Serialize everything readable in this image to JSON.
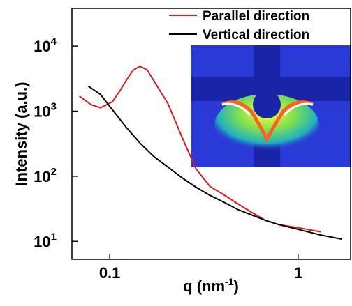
{
  "chart_data": {
    "type": "line",
    "xlabel": {
      "text": "q (nm",
      "superscript": "-1",
      "suffix": ")"
    },
    "ylabel": "Intensity (a.u.)",
    "log_x": true,
    "log_y": true,
    "xlim": [
      0.063,
      1.9
    ],
    "ylim": [
      5.3,
      38000
    ],
    "xticks": [
      0.1,
      1
    ],
    "yticks": [
      {
        "value": 10,
        "label": "10",
        "exponent": "1"
      },
      {
        "value": 100,
        "label": "10",
        "exponent": "2"
      },
      {
        "value": 1000,
        "label": "10",
        "exponent": "3"
      },
      {
        "value": 10000,
        "label": "10",
        "exponent": "4"
      }
    ],
    "legend": "upper right",
    "series": [
      {
        "name": "Parallel direction",
        "color": "#e0191c",
        "x": [
          0.069,
          0.08,
          0.0895,
          0.1034,
          0.1126,
          0.1226,
          0.1334,
          0.1452,
          0.158,
          0.172,
          0.204,
          0.242,
          0.287,
          0.34,
          0.403,
          0.477,
          0.566,
          0.671,
          0.795,
          1.026,
          1.32
        ],
        "values": [
          1700,
          1250,
          1130,
          1400,
          2000,
          3000,
          4300,
          4900,
          4300,
          2900,
          1300,
          400,
          130,
          70,
          52,
          38,
          28,
          21,
          18,
          16,
          14
        ]
      },
      {
        "name": "Vertical direction",
        "color": "#000000",
        "x": [
          0.0769,
          0.0895,
          0.1034,
          0.1226,
          0.1452,
          0.172,
          0.204,
          0.242,
          0.287,
          0.34,
          0.403,
          0.477,
          0.566,
          0.671,
          0.795,
          1.026,
          1.32,
          1.71
        ],
        "values": [
          2430,
          1800,
          1050,
          560,
          320,
          200,
          138,
          95,
          68,
          51,
          40,
          31,
          25.5,
          21,
          18,
          15,
          12.5,
          10.8
        ]
      }
    ]
  }
}
